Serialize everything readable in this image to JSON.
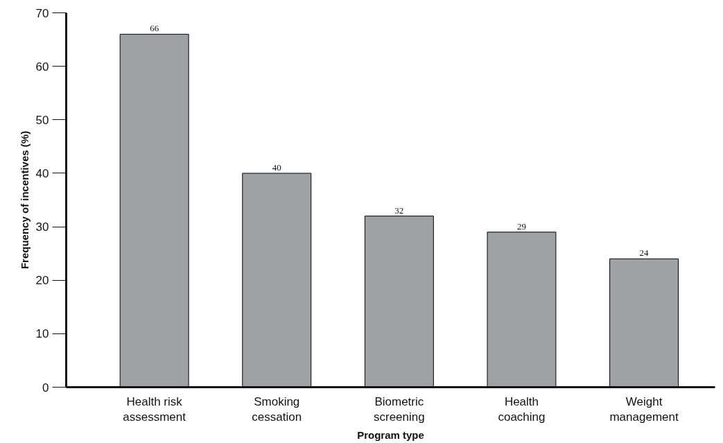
{
  "chart_data": {
    "type": "bar",
    "xlabel": "Program type",
    "ylabel": "Frequency of incentives (%)",
    "categories": [
      "Health risk assessment",
      "Smoking cessation",
      "Biometric screening",
      "Health coaching",
      "Weight management"
    ],
    "values": [
      66,
      40,
      32,
      29,
      24
    ],
    "color": "#a0a1a5",
    "data_labels": true,
    "ylim": [
      0,
      70
    ],
    "yticks": [
      0,
      10,
      20,
      30,
      40,
      50,
      60,
      70
    ],
    "grid": false
  }
}
